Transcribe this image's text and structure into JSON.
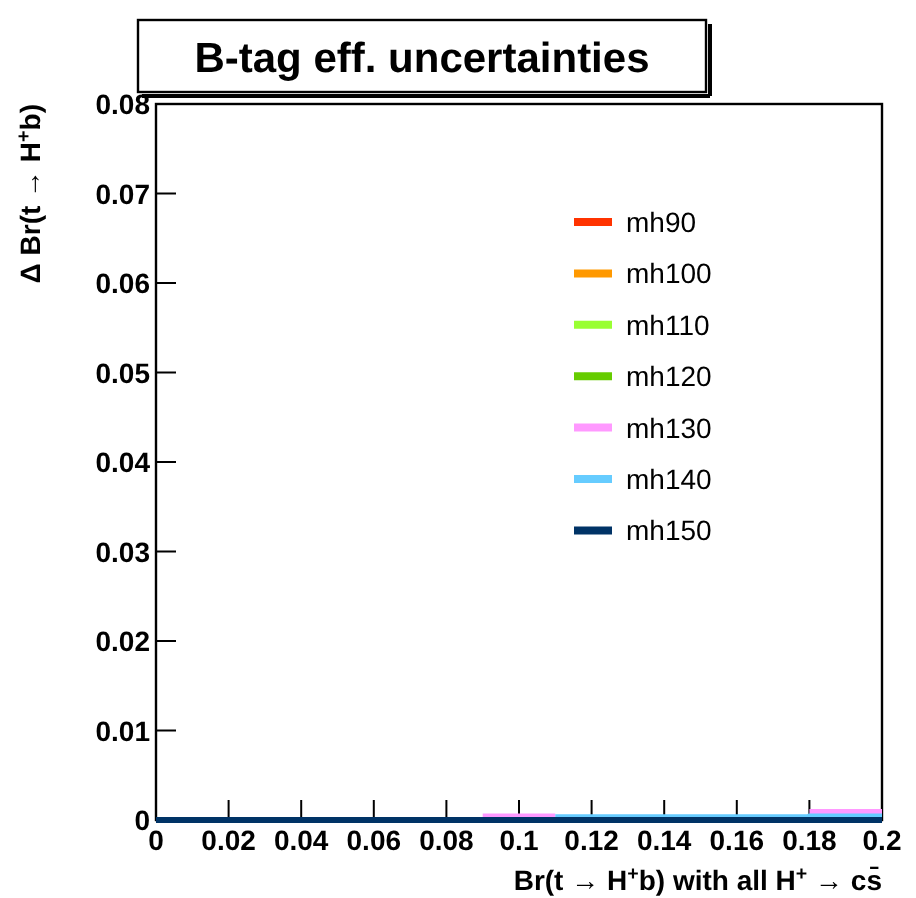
{
  "chart_data": {
    "type": "step",
    "title": "B-tag eff. uncertainties",
    "xlabel": "Br(t → H$^{+}$b) with all H$^{+}$ → cs̄",
    "ylabel": "Δ Br(t → H$^{+}$b)",
    "x": [
      0,
      0.01,
      0.02,
      0.03,
      0.04,
      0.05,
      0.06,
      0.07,
      0.08,
      0.09,
      0.1,
      0.11,
      0.12,
      0.13,
      0.14,
      0.15,
      0.16,
      0.17,
      0.18,
      0.19,
      0.2
    ],
    "series": [
      {
        "name": "mh90",
        "color": "#ff3300",
        "values": [
          null,
          null,
          null,
          null,
          null,
          null,
          null,
          null,
          null,
          null,
          null,
          null,
          null,
          null,
          null,
          null,
          null,
          null,
          null,
          null,
          null
        ]
      },
      {
        "name": "mh100",
        "color": "#ff9900",
        "values": [
          null,
          null,
          null,
          null,
          null,
          null,
          null,
          null,
          null,
          null,
          null,
          null,
          null,
          null,
          null,
          null,
          null,
          null,
          null,
          null,
          null
        ]
      },
      {
        "name": "mh110",
        "color": "#99ff33",
        "values": [
          null,
          null,
          null,
          null,
          null,
          null,
          null,
          null,
          null,
          null,
          null,
          null,
          null,
          null,
          null,
          null,
          null,
          null,
          null,
          null,
          null
        ]
      },
      {
        "name": "mh120",
        "color": "#66cc00",
        "values": [
          null,
          null,
          null,
          null,
          null,
          null,
          null,
          null,
          null,
          null,
          null,
          null,
          null,
          null,
          null,
          null,
          null,
          null,
          null,
          null,
          null
        ]
      },
      {
        "name": "mh130",
        "color": "#ff99ff",
        "values": [
          null,
          null,
          null,
          null,
          null,
          null,
          null,
          null,
          null,
          0.0004,
          0.0004,
          0.0004,
          null,
          null,
          null,
          null,
          null,
          null,
          0.0009,
          0.0009,
          0.0009
        ]
      },
      {
        "name": "mh140",
        "color": "#66ccff",
        "values": [
          null,
          null,
          null,
          null,
          null,
          null,
          null,
          null,
          null,
          null,
          null,
          0.0003,
          0.0003,
          0.0003,
          0.0003,
          0.0003,
          0.0003,
          0.0003,
          0.0004,
          0.0004,
          0.0004
        ]
      },
      {
        "name": "mh150",
        "color": "#003366",
        "values": [
          0,
          0,
          0,
          0,
          0,
          0,
          0,
          0,
          0,
          0,
          0,
          0,
          0,
          0,
          0,
          0,
          0,
          0,
          0,
          0,
          0
        ]
      }
    ],
    "xlim": [
      0,
      0.2
    ],
    "xticks": [
      0,
      0.02,
      0.04,
      0.06,
      0.08,
      0.1,
      0.12,
      0.14,
      0.16,
      0.18,
      0.2
    ],
    "ylim": [
      0,
      0.08
    ],
    "yticks": [
      0,
      0.01,
      0.02,
      0.03,
      0.04,
      0.05,
      0.06,
      0.07,
      0.08
    ],
    "legend": "right",
    "grid": false
  }
}
